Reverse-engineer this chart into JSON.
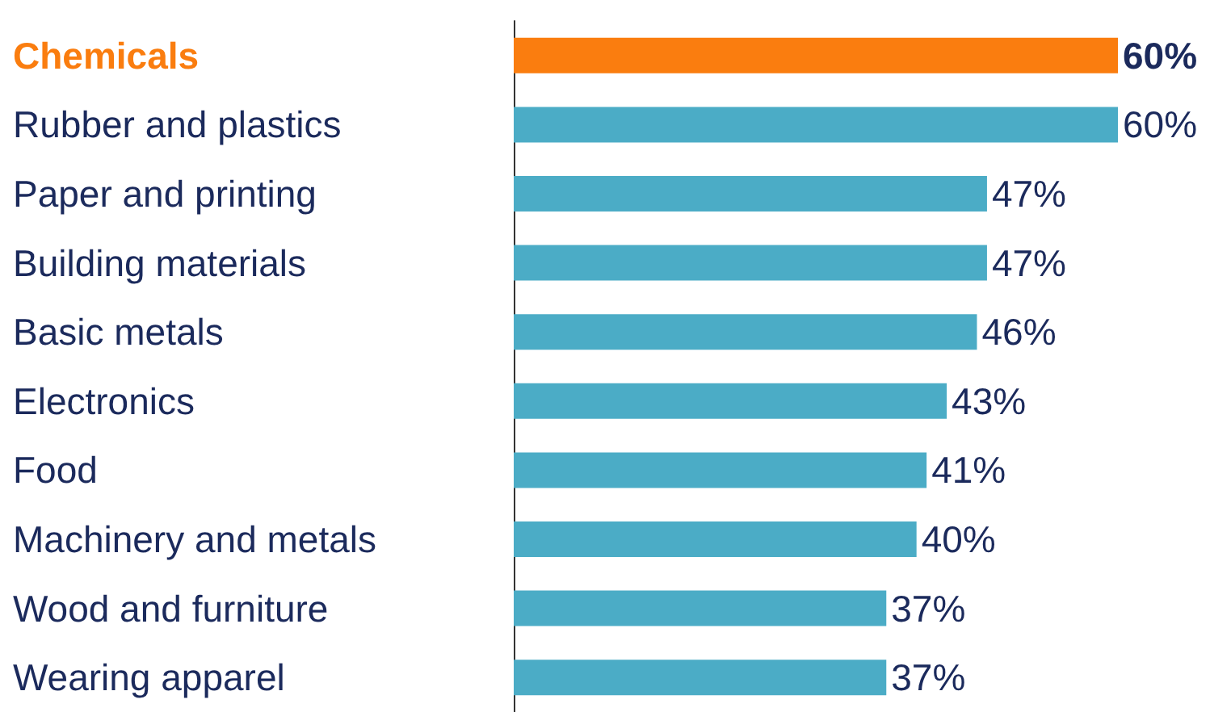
{
  "chart_data": {
    "type": "bar",
    "orientation": "horizontal",
    "categories": [
      "Chemicals",
      "Rubber and plastics",
      "Paper and printing",
      "Building materials",
      "Basic metals",
      "Electronics",
      "Food",
      "Machinery and metals",
      "Wood and furniture",
      "Wearing apparel"
    ],
    "values": [
      60,
      60,
      47,
      47,
      46,
      43,
      41,
      40,
      37,
      37
    ],
    "value_labels": [
      "60%",
      "60%",
      "47%",
      "47%",
      "46%",
      "43%",
      "41%",
      "40%",
      "37%",
      "37%"
    ],
    "colors": [
      "#fa7d0f",
      "#4bacc6",
      "#4bacc6",
      "#4bacc6",
      "#4bacc6",
      "#4bacc6",
      "#4bacc6",
      "#4bacc6",
      "#4bacc6",
      "#4bacc6"
    ],
    "grid": false
  }
}
